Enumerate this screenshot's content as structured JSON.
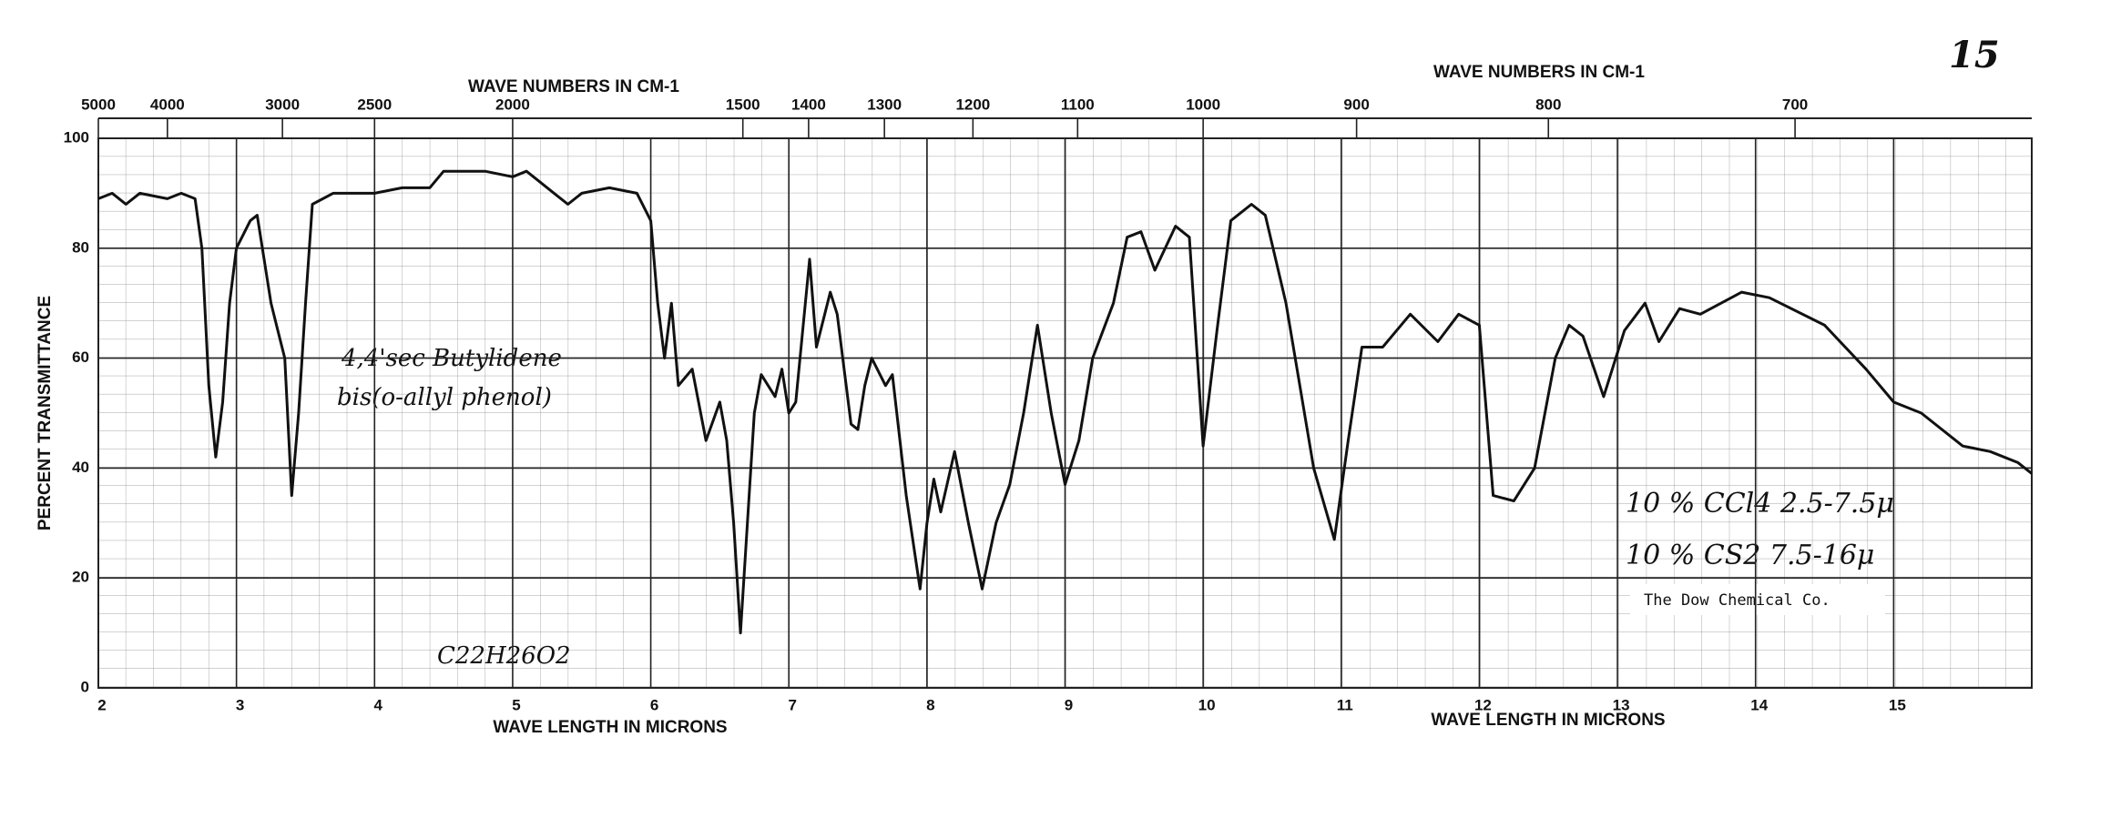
{
  "chart_data": {
    "type": "line",
    "page_number": "15",
    "y_label": "PERCENT TRANSMITTANCE",
    "x_label": "WAVE LENGTH IN MICRONS",
    "x2_label": "WAVE NUMBERS IN CM-1",
    "annotations": [
      "4,4'sec Butylidene",
      "bis(o-allyl phenol)",
      "C22H26O2",
      "10 % CCl4 2.5-7.5μ",
      "10 % CS2 7.5-16μ",
      "The Dow Chemical Co."
    ],
    "xlim": [
      2,
      16
    ],
    "ylim": [
      0,
      100
    ],
    "xticks": [
      2,
      3,
      4,
      5,
      6,
      7,
      8,
      9,
      10,
      11,
      12,
      13,
      14,
      15
    ],
    "yticks": [
      0,
      20,
      40,
      60,
      80,
      100
    ],
    "x2ticks": [
      {
        "value": 2,
        "label": "5000"
      },
      {
        "value": 2.5,
        "label": "4000"
      },
      {
        "value": 3.333,
        "label": "3000"
      },
      {
        "value": 4,
        "label": "2500"
      },
      {
        "value": 5,
        "label": "2000"
      },
      {
        "value": 6.667,
        "label": "1500"
      },
      {
        "value": 7.143,
        "label": "1400"
      },
      {
        "value": 7.692,
        "label": "1300"
      },
      {
        "value": 8.333,
        "label": "1200"
      },
      {
        "value": 9.091,
        "label": "1100"
      },
      {
        "value": 10,
        "label": "1000"
      },
      {
        "value": 11.111,
        "label": "900"
      },
      {
        "value": 12.5,
        "label": "800"
      },
      {
        "value": 14.286,
        "label": "700"
      }
    ],
    "grid": true,
    "series": [
      {
        "color": "#111111",
        "x": [
          2.0,
          2.1,
          2.2,
          2.3,
          2.5,
          2.6,
          2.7,
          2.75,
          2.8,
          2.85,
          2.9,
          2.95,
          3.0,
          3.1,
          3.15,
          3.25,
          3.3,
          3.35,
          3.4,
          3.45,
          3.5,
          3.55,
          3.7,
          4.0,
          4.2,
          4.4,
          4.5,
          4.8,
          5.0,
          5.1,
          5.2,
          5.3,
          5.4,
          5.5,
          5.7,
          5.9,
          6.0,
          6.05,
          6.1,
          6.15,
          6.2,
          6.3,
          6.4,
          6.5,
          6.55,
          6.6,
          6.65,
          6.7,
          6.75,
          6.8,
          6.9,
          6.95,
          7.0,
          7.05,
          7.15,
          7.2,
          7.3,
          7.35,
          7.45,
          7.5,
          7.55,
          7.6,
          7.7,
          7.75,
          7.85,
          7.95,
          8.0,
          8.05,
          8.1,
          8.2,
          8.3,
          8.4,
          8.5,
          8.6,
          8.7,
          8.8,
          8.9,
          9.0,
          9.1,
          9.2,
          9.35,
          9.45,
          9.55,
          9.65,
          9.8,
          9.9,
          10.0,
          10.1,
          10.2,
          10.35,
          10.45,
          10.6,
          10.8,
          10.95,
          11.05,
          11.15,
          11.3,
          11.5,
          11.7,
          11.85,
          12.0,
          12.1,
          12.25,
          12.4,
          12.55,
          12.65,
          12.75,
          12.9,
          13.05,
          13.2,
          13.3,
          13.45,
          13.6,
          13.9,
          14.1,
          14.5,
          14.8,
          15.0,
          15.2,
          15.5,
          15.7,
          15.9,
          16.0
        ],
        "values": [
          89,
          90,
          88,
          90,
          89,
          90,
          89,
          80,
          55,
          42,
          52,
          70,
          80,
          85,
          86,
          70,
          65,
          60,
          35,
          50,
          70,
          88,
          90,
          90,
          91,
          91,
          94,
          94,
          93,
          94,
          92,
          90,
          88,
          90,
          91,
          90,
          85,
          70,
          60,
          70,
          55,
          58,
          45,
          52,
          45,
          30,
          10,
          30,
          50,
          57,
          53,
          58,
          50,
          52,
          78,
          62,
          72,
          68,
          48,
          47,
          55,
          60,
          55,
          57,
          35,
          18,
          30,
          38,
          32,
          43,
          30,
          18,
          30,
          37,
          50,
          66,
          50,
          37,
          45,
          60,
          70,
          82,
          83,
          76,
          84,
          82,
          44,
          65,
          85,
          88,
          86,
          70,
          40,
          27,
          45,
          62,
          62,
          68,
          63,
          68,
          66,
          35,
          34,
          40,
          60,
          66,
          64,
          53,
          65,
          70,
          63,
          69,
          68,
          72,
          71,
          66,
          58,
          52,
          50,
          44,
          43,
          41,
          39
        ]
      }
    ]
  }
}
